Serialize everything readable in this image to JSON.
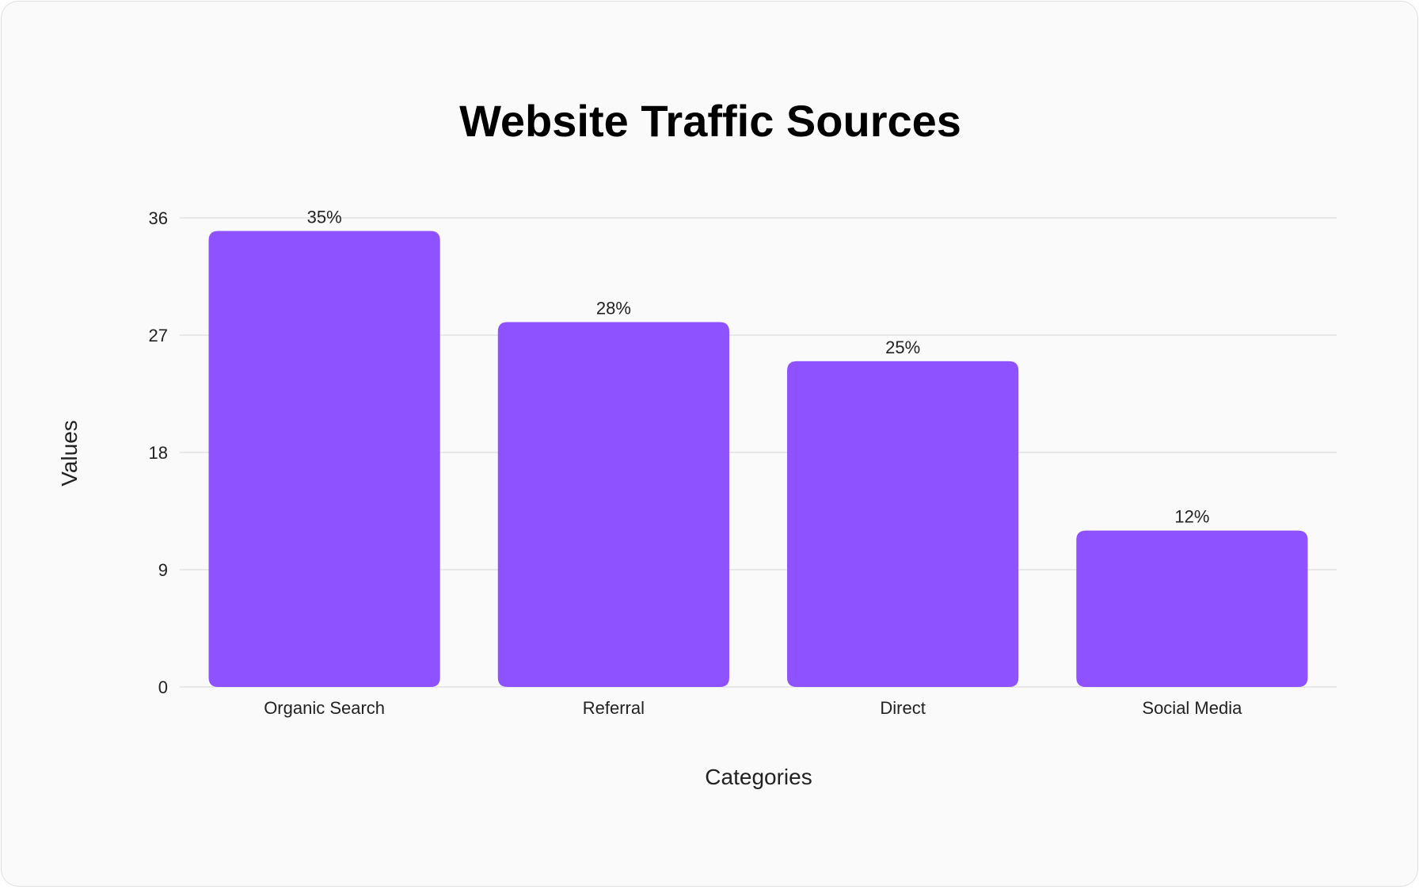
{
  "chart_data": {
    "type": "bar",
    "title": "Website Traffic Sources",
    "xlabel": "Categories",
    "ylabel": "Values",
    "categories": [
      "Organic Search",
      "Referral",
      "Direct",
      "Social Media"
    ],
    "values": [
      35,
      28,
      25,
      12
    ],
    "data_labels": [
      "35%",
      "28%",
      "25%",
      "12%"
    ],
    "yticks": [
      0,
      9,
      18,
      27,
      36
    ],
    "ylim": [
      0,
      36
    ],
    "grid": true,
    "legend": "none",
    "colors": {
      "bar": "#8f52ff",
      "grid": "#e2e2e2",
      "text": "#222222"
    }
  }
}
